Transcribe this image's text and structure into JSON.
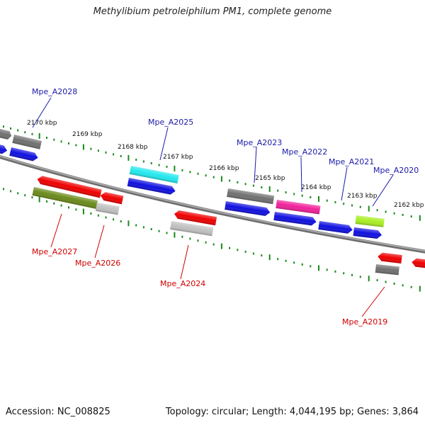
{
  "title": "Methylibium petroleiphilum PM1, complete genome",
  "footer": {
    "accession": "Accession: NC_008825",
    "topology": "Topology: circular; Length: 4,044,195 bp; Genes: 3,864"
  },
  "kbp_labels": [
    "2170 kbp",
    "2169 kbp",
    "2168 kbp",
    "2167 kbp",
    "2166 kbp",
    "2165 kbp",
    "2164 kbp",
    "2163 kbp",
    "2162 kbp"
  ],
  "gene_labels": {
    "forward": [
      "Mpe_A2028",
      "Mpe_A2025",
      "Mpe_A2023",
      "Mpe_A2022",
      "Mpe_A2021",
      "Mpe_A2020"
    ],
    "reverse": [
      "Mpe_A2027",
      "Mpe_A2026",
      "Mpe_A2024",
      "Mpe_A2019"
    ]
  },
  "colors": {
    "forward_label": "#1a1aa8",
    "reverse_label": "#d00000",
    "tick": "#1a8a1a",
    "backbone": "#888888",
    "blue": "#1010e0",
    "red": "#ee0000",
    "gray": "#707070",
    "lightgray": "#c0c0c0",
    "cyan": "#22e8ee",
    "magenta": "#f0209a",
    "olive": "#6a8a1a",
    "lime": "#a8ee22"
  }
}
